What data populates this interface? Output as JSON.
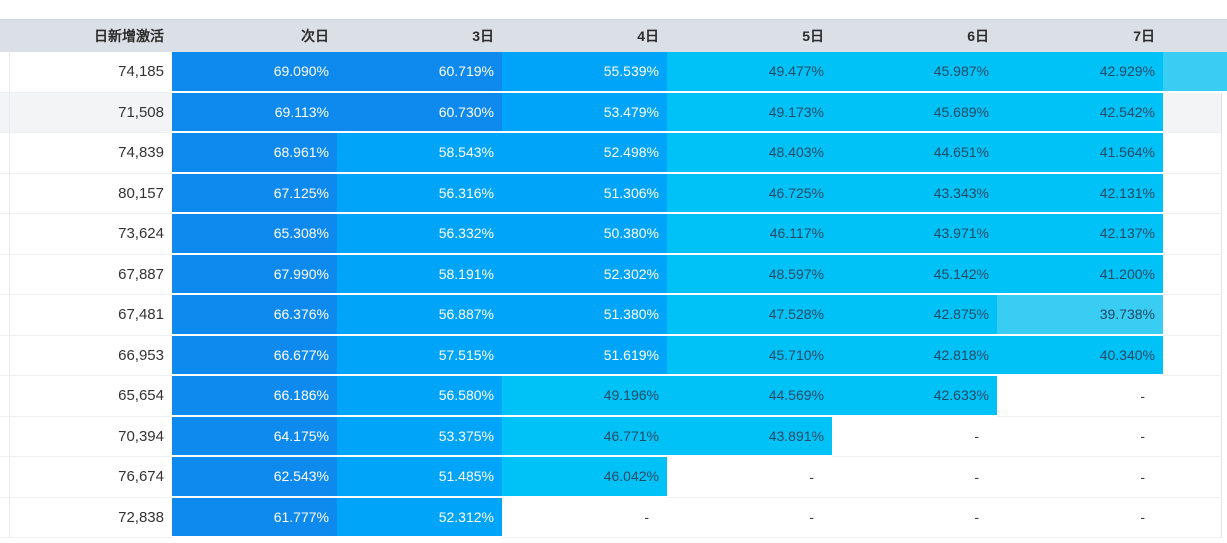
{
  "table": {
    "columns": [
      "日新增激活",
      "次日",
      "3日",
      "4日",
      "5日",
      "6日",
      "7日"
    ],
    "empty_cell_text": "-",
    "rows": [
      {
        "activation": "74,185",
        "values": [
          "69.090%",
          "60.719%",
          "55.539%",
          "49.477%",
          "45.987%",
          "42.929%"
        ],
        "overflow_colored": true
      },
      {
        "activation": "71,508",
        "values": [
          "69.113%",
          "60.730%",
          "53.479%",
          "49.173%",
          "45.689%",
          "42.542%"
        ],
        "overflow_colored": false
      },
      {
        "activation": "74,839",
        "values": [
          "68.961%",
          "58.543%",
          "52.498%",
          "48.403%",
          "44.651%",
          "41.564%"
        ],
        "overflow_colored": false
      },
      {
        "activation": "80,157",
        "values": [
          "67.125%",
          "56.316%",
          "51.306%",
          "46.725%",
          "43.343%",
          "42.131%"
        ],
        "overflow_colored": false
      },
      {
        "activation": "73,624",
        "values": [
          "65.308%",
          "56.332%",
          "50.380%",
          "46.117%",
          "43.971%",
          "42.137%"
        ],
        "overflow_colored": false
      },
      {
        "activation": "67,887",
        "values": [
          "67.990%",
          "58.191%",
          "52.302%",
          "48.597%",
          "45.142%",
          "41.200%"
        ],
        "overflow_colored": false
      },
      {
        "activation": "67,481",
        "values": [
          "66.376%",
          "56.887%",
          "51.380%",
          "47.528%",
          "42.875%",
          "39.738%"
        ],
        "overflow_colored": false
      },
      {
        "activation": "66,953",
        "values": [
          "66.677%",
          "57.515%",
          "51.619%",
          "45.710%",
          "42.818%",
          "40.340%"
        ],
        "overflow_colored": false
      },
      {
        "activation": "65,654",
        "values": [
          "66.186%",
          "56.580%",
          "49.196%",
          "44.569%",
          "42.633%",
          "-"
        ],
        "overflow_colored": false
      },
      {
        "activation": "70,394",
        "values": [
          "64.175%",
          "53.375%",
          "46.771%",
          "43.891%",
          "-",
          "-"
        ],
        "overflow_colored": false
      },
      {
        "activation": "76,674",
        "values": [
          "62.543%",
          "51.485%",
          "46.042%",
          "-",
          "-",
          "-"
        ],
        "overflow_colored": false
      },
      {
        "activation": "72,838",
        "values": [
          "61.777%",
          "52.312%",
          "-",
          "-",
          "-",
          "-"
        ],
        "overflow_colored": false
      }
    ]
  },
  "hovered_row_index": 1,
  "colors": {
    "bin_60_70": "#0e89ee",
    "bin_50_60": "#00a4f8",
    "bin_40_50": "#00c2f6",
    "bin_30_40": "#3acdf3",
    "header_bg": "#dbe0e6",
    "header_text": "#2b2b2b",
    "hover_row_bg": "#f3f4f6",
    "value_text_light": "#ffffff",
    "value_text_dark": "#234a66",
    "activation_text": "#333333"
  }
}
